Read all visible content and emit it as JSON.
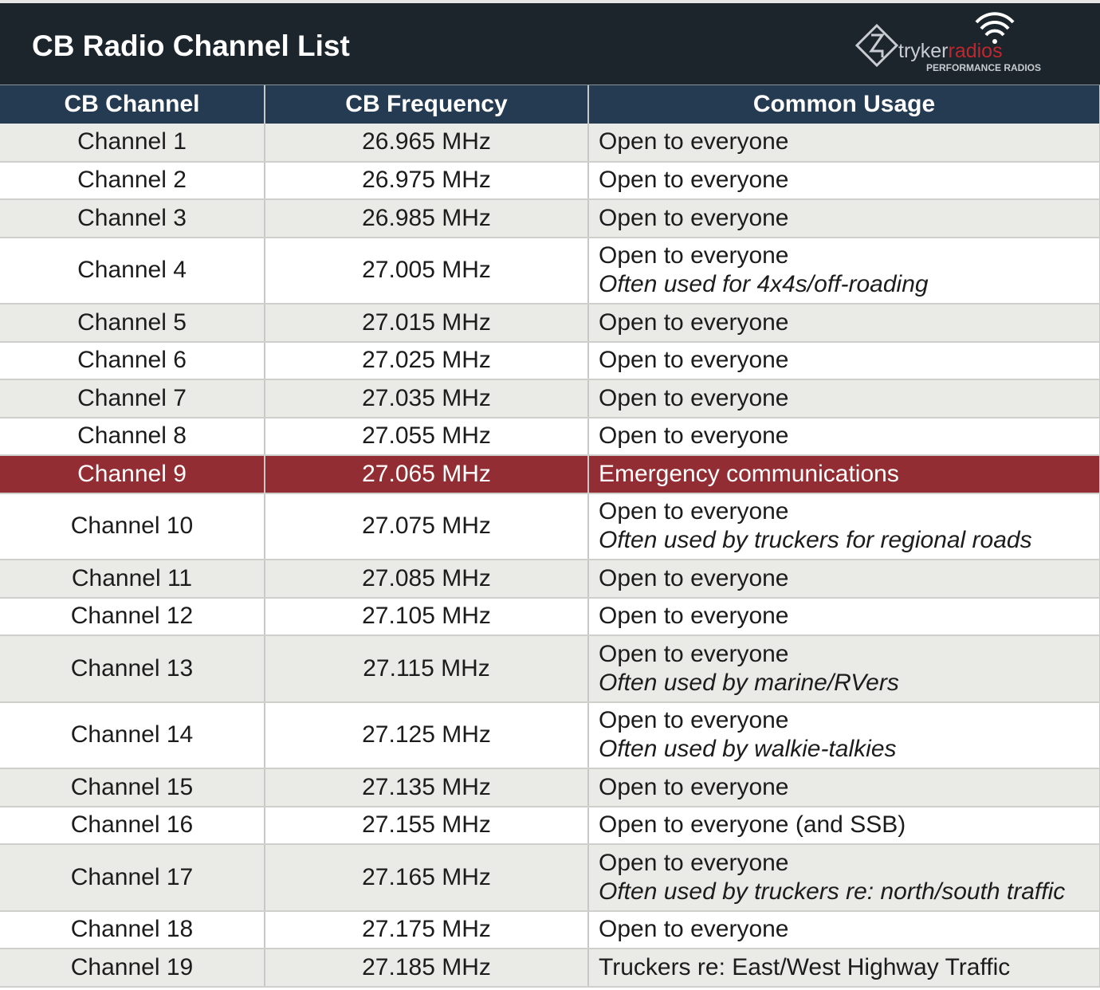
{
  "title": "CB Radio Channel List",
  "logo": {
    "brand_a": "tryker",
    "brand_b": "radios",
    "tagline": "PERFORMANCE RADIOS"
  },
  "colors": {
    "title_bg": "#1b252b",
    "header_bg": "#243b52",
    "highlight": "#922e33",
    "stripe": "#eaeae6"
  },
  "columns": [
    "CB Channel",
    "CB Frequency",
    "Common Usage"
  ],
  "rows": [
    {
      "channel": "Channel 1",
      "freq": "26.965 MHz",
      "usage": "Open to everyone",
      "note": ""
    },
    {
      "channel": "Channel 2",
      "freq": "26.975 MHz",
      "usage": "Open to everyone",
      "note": ""
    },
    {
      "channel": "Channel 3",
      "freq": "26.985 MHz",
      "usage": "Open to everyone",
      "note": ""
    },
    {
      "channel": "Channel 4",
      "freq": "27.005 MHz",
      "usage": "Open to everyone",
      "note": "Often used for 4x4s/off-roading"
    },
    {
      "channel": "Channel 5",
      "freq": "27.015 MHz",
      "usage": "Open to everyone",
      "note": ""
    },
    {
      "channel": "Channel 6",
      "freq": "27.025 MHz",
      "usage": "Open to everyone",
      "note": ""
    },
    {
      "channel": "Channel 7",
      "freq": "27.035 MHz",
      "usage": "Open to everyone",
      "note": ""
    },
    {
      "channel": "Channel 8",
      "freq": "27.055 MHz",
      "usage": "Open to everyone",
      "note": ""
    },
    {
      "channel": "Channel 9",
      "freq": "27.065 MHz",
      "usage": "Emergency communications",
      "note": "",
      "highlight": true
    },
    {
      "channel": "Channel 10",
      "freq": "27.075 MHz",
      "usage": "Open to everyone",
      "note": "Often used by truckers for regional roads"
    },
    {
      "channel": "Channel 11",
      "freq": "27.085 MHz",
      "usage": "Open to everyone",
      "note": ""
    },
    {
      "channel": "Channel 12",
      "freq": "27.105 MHz",
      "usage": "Open to everyone",
      "note": ""
    },
    {
      "channel": "Channel 13",
      "freq": "27.115 MHz",
      "usage": "Open to everyone",
      "note": "Often used by marine/RVers"
    },
    {
      "channel": "Channel 14",
      "freq": "27.125 MHz",
      "usage": "Open to everyone",
      "note": "Often used by walkie-talkies"
    },
    {
      "channel": "Channel 15",
      "freq": "27.135 MHz",
      "usage": "Open to everyone",
      "note": ""
    },
    {
      "channel": "Channel 16",
      "freq": "27.155 MHz",
      "usage": "Open to everyone (and SSB)",
      "note": ""
    },
    {
      "channel": "Channel 17",
      "freq": "27.165 MHz",
      "usage": "Open to everyone",
      "note": "Often used by truckers re: north/south traffic"
    },
    {
      "channel": "Channel 18",
      "freq": "27.175 MHz",
      "usage": "Open to everyone",
      "note": ""
    },
    {
      "channel": "Channel 19",
      "freq": "27.185 MHz",
      "usage": "Truckers re: East/West Highway Traffic",
      "note": ""
    }
  ]
}
